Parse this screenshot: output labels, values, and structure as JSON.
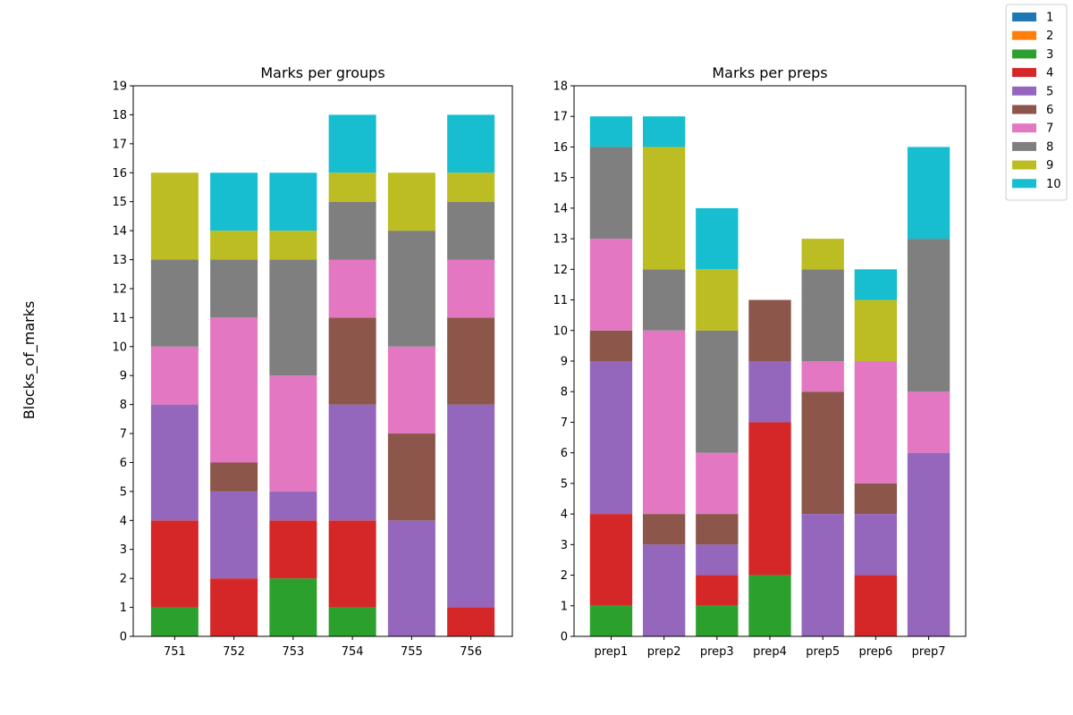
{
  "figure": {
    "ylabel": "Blocks_of_marks"
  },
  "legend": {
    "placement": "top-right",
    "entries": [
      {
        "label": "1",
        "color": "#1f77b4"
      },
      {
        "label": "2",
        "color": "#ff7f0e"
      },
      {
        "label": "3",
        "color": "#2ca02c"
      },
      {
        "label": "4",
        "color": "#d62728"
      },
      {
        "label": "5",
        "color": "#9467bd"
      },
      {
        "label": "6",
        "color": "#8c564b"
      },
      {
        "label": "7",
        "color": "#e377c2"
      },
      {
        "label": "8",
        "color": "#7f7f7f"
      },
      {
        "label": "9",
        "color": "#bcbd22"
      },
      {
        "label": "10",
        "color": "#17becf"
      }
    ]
  },
  "chart_data": [
    {
      "type": "bar",
      "stacked": true,
      "title": "Marks per groups",
      "xlabel": "",
      "ylabel": "",
      "categories": [
        "751",
        "752",
        "753",
        "754",
        "755",
        "756"
      ],
      "ylim": [
        0,
        19
      ],
      "yticks": [
        0,
        1,
        2,
        3,
        4,
        5,
        6,
        7,
        8,
        9,
        10,
        11,
        12,
        13,
        14,
        15,
        16,
        17,
        18,
        19
      ],
      "grid": false,
      "series": [
        {
          "name": "1",
          "values": [
            0,
            0,
            0,
            0,
            0,
            0
          ]
        },
        {
          "name": "2",
          "values": [
            0,
            0,
            0,
            0,
            0,
            0
          ]
        },
        {
          "name": "3",
          "values": [
            1,
            0,
            2,
            1,
            0,
            0
          ]
        },
        {
          "name": "4",
          "values": [
            3,
            2,
            2,
            3,
            0,
            1
          ]
        },
        {
          "name": "5",
          "values": [
            4,
            3,
            1,
            4,
            4,
            7
          ]
        },
        {
          "name": "6",
          "values": [
            0,
            1,
            0,
            3,
            3,
            3
          ]
        },
        {
          "name": "7",
          "values": [
            2,
            5,
            4,
            2,
            3,
            2
          ]
        },
        {
          "name": "8",
          "values": [
            3,
            2,
            4,
            2,
            4,
            2
          ]
        },
        {
          "name": "9",
          "values": [
            3,
            1,
            1,
            1,
            2,
            1
          ]
        },
        {
          "name": "10",
          "values": [
            0,
            2,
            2,
            2,
            0,
            2
          ]
        }
      ]
    },
    {
      "type": "bar",
      "stacked": true,
      "title": "Marks per preps",
      "xlabel": "",
      "ylabel": "",
      "categories": [
        "prep1",
        "prep2",
        "prep3",
        "prep4",
        "prep5",
        "prep6",
        "prep7"
      ],
      "ylim": [
        0,
        18
      ],
      "yticks": [
        0,
        1,
        2,
        3,
        4,
        5,
        6,
        7,
        8,
        9,
        10,
        11,
        12,
        13,
        14,
        15,
        16,
        17,
        18
      ],
      "grid": false,
      "series": [
        {
          "name": "1",
          "values": [
            0,
            0,
            0,
            0,
            0,
            0,
            0
          ]
        },
        {
          "name": "2",
          "values": [
            0,
            0,
            0,
            0,
            0,
            0,
            0
          ]
        },
        {
          "name": "3",
          "values": [
            1,
            0,
            1,
            2,
            0,
            0,
            0
          ]
        },
        {
          "name": "4",
          "values": [
            3,
            0,
            1,
            5,
            0,
            2,
            0
          ]
        },
        {
          "name": "5",
          "values": [
            5,
            3,
            1,
            2,
            4,
            2,
            6
          ]
        },
        {
          "name": "6",
          "values": [
            1,
            1,
            1,
            2,
            4,
            1,
            0
          ]
        },
        {
          "name": "7",
          "values": [
            3,
            6,
            2,
            0,
            1,
            4,
            2
          ]
        },
        {
          "name": "8",
          "values": [
            3,
            2,
            4,
            0,
            3,
            0,
            5
          ]
        },
        {
          "name": "9",
          "values": [
            0,
            4,
            2,
            0,
            1,
            2,
            0
          ]
        },
        {
          "name": "10",
          "values": [
            1,
            1,
            2,
            0,
            0,
            1,
            3
          ]
        }
      ]
    }
  ]
}
